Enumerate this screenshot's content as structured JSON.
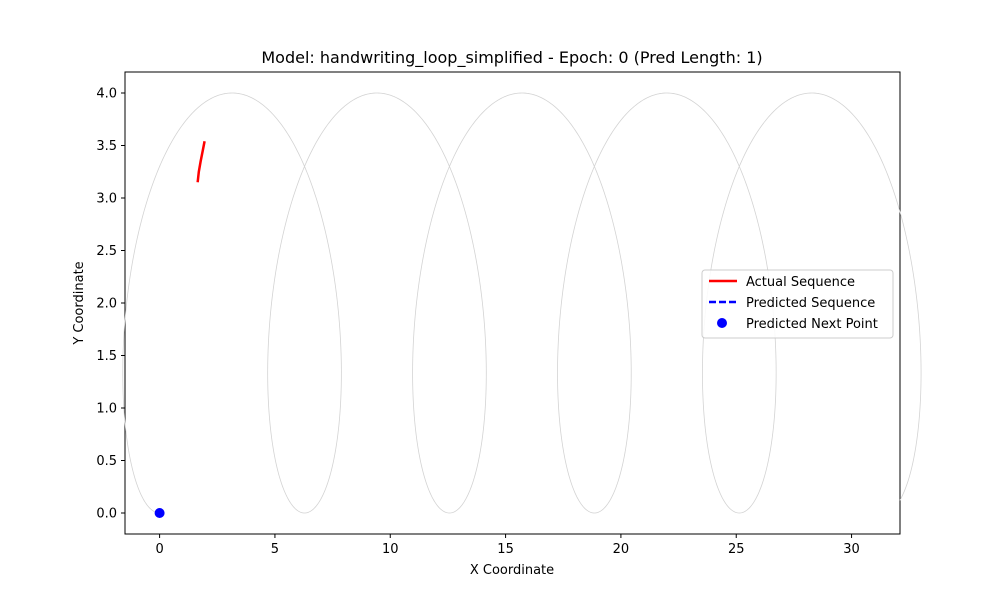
{
  "chart_data": {
    "type": "line",
    "title": "Model: handwriting_loop_simplified - Epoch: 0 (Pred Length: 1)",
    "xlabel": "X Coordinate",
    "ylabel": "Y Coordinate",
    "xlim": [
      -1.5,
      32.1
    ],
    "ylim": [
      -0.2,
      4.2
    ],
    "xticks": [
      0,
      5,
      10,
      15,
      20,
      25,
      30
    ],
    "yticks": [
      0.0,
      0.5,
      1.0,
      1.5,
      2.0,
      2.5,
      3.0,
      3.5,
      4.0
    ],
    "xtick_labels": [
      "0",
      "5",
      "10",
      "15",
      "20",
      "25",
      "30"
    ],
    "ytick_labels": [
      "0.0",
      "0.5",
      "1.0",
      "1.5",
      "2.0",
      "2.5",
      "3.0",
      "3.5",
      "4.0"
    ],
    "grid": false,
    "legend_position": "center-right",
    "background_curve": {
      "description_type": "loop",
      "color": "#d3d3d3",
      "x_start": 0,
      "x_end": 30.6,
      "loops": 5,
      "y_min": 0,
      "y_max": 4.0
    },
    "series": [
      {
        "name": "Actual Sequence",
        "style": "solid",
        "color": "#ff0000",
        "x": [
          1.65,
          1.7,
          1.78,
          1.87,
          1.95
        ],
        "y": [
          3.15,
          3.25,
          3.35,
          3.45,
          3.54
        ]
      },
      {
        "name": "Predicted Sequence",
        "style": "dashed",
        "color": "#0000ff",
        "x": [],
        "y": []
      },
      {
        "name": "Predicted Next Point",
        "style": "marker",
        "color": "#0000ff",
        "x": [
          0
        ],
        "y": [
          0
        ]
      }
    ]
  }
}
